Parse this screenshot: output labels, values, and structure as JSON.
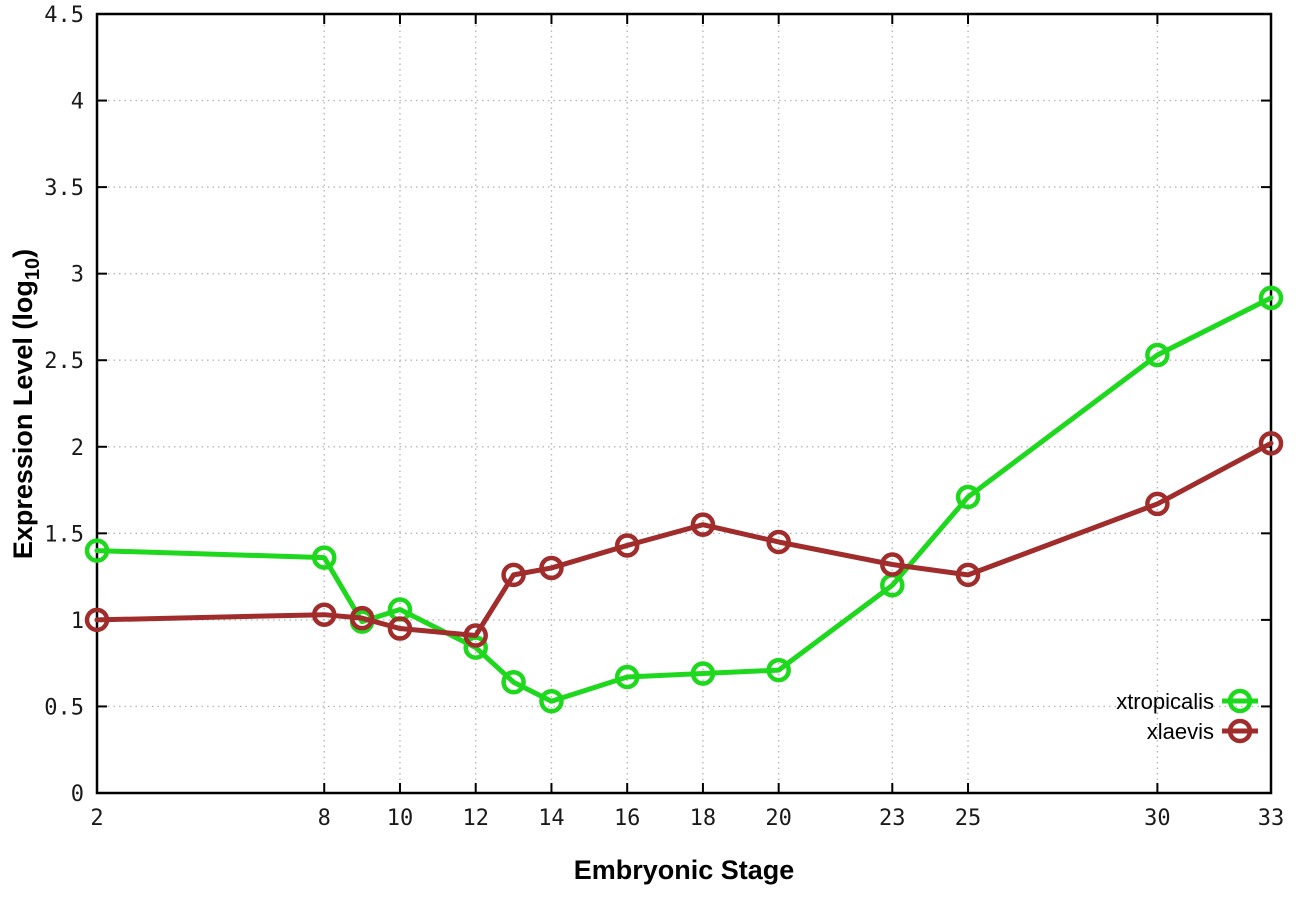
{
  "chart_data": {
    "type": "line",
    "title": "",
    "xlabel": "Embryonic Stage",
    "ylabel_prefix": "Expression Level (log",
    "ylabel_sub": "10",
    "ylabel_suffix": ")",
    "xlim": [
      2,
      33
    ],
    "ylim": [
      0,
      4.5
    ],
    "xticks": [
      2,
      8,
      10,
      12,
      14,
      16,
      18,
      20,
      23,
      25,
      30,
      33
    ],
    "yticks": [
      0,
      0.5,
      1,
      1.5,
      2,
      2.5,
      3,
      3.5,
      4,
      4.5
    ],
    "grid": true,
    "grid_style": "dotted",
    "legend_position": "inside-bottom-right",
    "marker": "open-circle",
    "x": [
      2,
      8,
      9,
      10,
      12,
      13,
      14,
      16,
      18,
      20,
      23,
      25,
      30,
      33
    ],
    "series": [
      {
        "name": "xtropicalis",
        "color": "#1dd81d",
        "values": [
          1.4,
          1.36,
          0.99,
          1.06,
          0.84,
          0.64,
          0.53,
          0.67,
          0.69,
          0.71,
          1.2,
          1.71,
          2.53,
          2.86
        ]
      },
      {
        "name": "xlaevis",
        "color": "#a02c2c",
        "values": [
          1.0,
          1.03,
          1.01,
          0.95,
          0.91,
          1.26,
          1.3,
          1.43,
          1.55,
          1.45,
          1.32,
          1.26,
          1.67,
          2.02
        ]
      }
    ],
    "colors": {
      "axis": "#000000",
      "grid": "#b8b8b8",
      "background": "#ffffff",
      "tick_text": "#1a1a1a"
    }
  }
}
